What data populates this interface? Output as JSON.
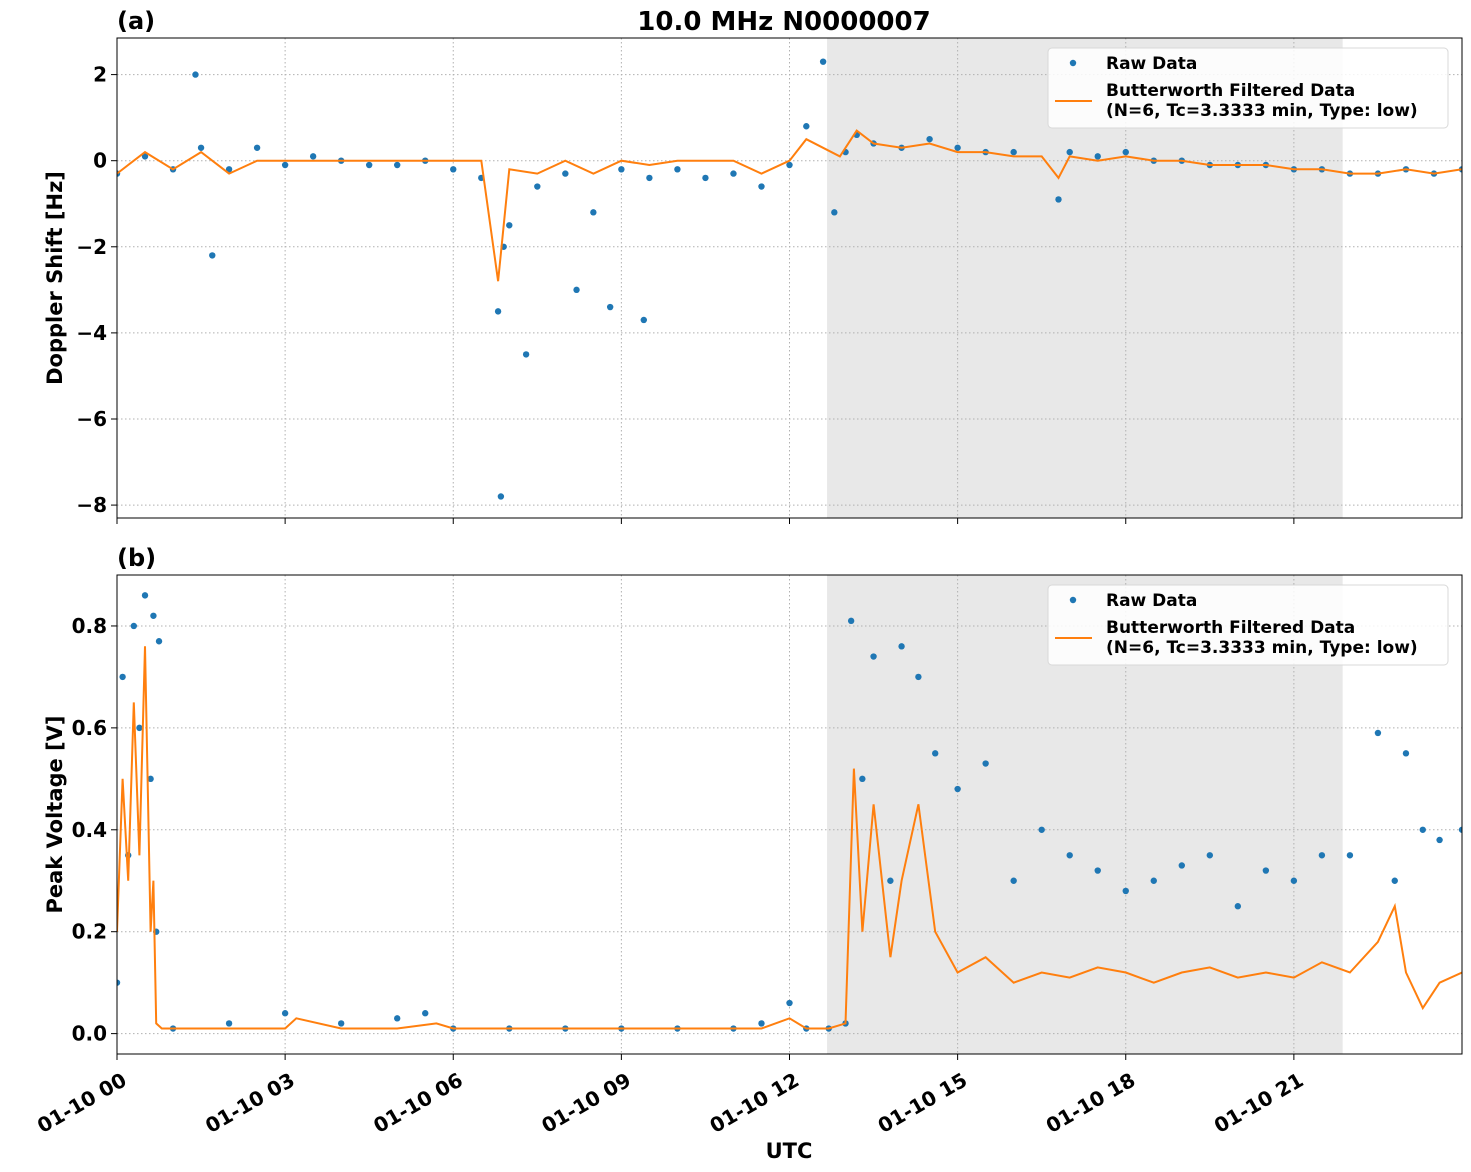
{
  "figure": {
    "title": "10.0 MHz N0000007",
    "xlabel": "UTC",
    "x_tick_labels": [
      "01-10 00",
      "01-10 03",
      "01-10 06",
      "01-10 09",
      "01-10 12",
      "01-10 15",
      "01-10 18",
      "01-10 21"
    ],
    "colors": {
      "raw": "#1f77b4",
      "filtered": "#ff7f0e",
      "night_shade": "#e8e8e8"
    }
  },
  "chart_data": [
    {
      "type": "scatter",
      "panel_label": "(a)",
      "ylabel": "Doppler Shift [Hz]",
      "xlim": [
        0,
        24
      ],
      "ylim": [
        -8.3,
        2.85
      ],
      "y_ticks": [
        2,
        0,
        -2,
        -4,
        -6,
        -8
      ],
      "y_tick_labels": [
        "2",
        "0",
        "−2",
        "−4",
        "−6",
        "−8"
      ],
      "grid": true,
      "legend_position": "top-right",
      "shaded_region": [
        12.67,
        21.87
      ],
      "series": [
        {
          "name": "Raw Data",
          "style": "points",
          "x": [
            0.0,
            0.5,
            1.0,
            1.4,
            1.5,
            1.7,
            2.0,
            2.5,
            3.0,
            3.5,
            4.0,
            4.5,
            5.0,
            5.5,
            6.0,
            6.5,
            6.8,
            6.85,
            6.9,
            7.0,
            7.3,
            7.5,
            8.0,
            8.2,
            8.5,
            8.8,
            9.0,
            9.4,
            9.5,
            10.0,
            10.5,
            11.0,
            11.5,
            12.0,
            12.3,
            12.6,
            12.8,
            13.0,
            13.2,
            13.5,
            14.0,
            14.5,
            15.0,
            15.5,
            16.0,
            16.8,
            17.0,
            17.5,
            18.0,
            18.5,
            19.0,
            19.5,
            20.0,
            20.5,
            21.0,
            21.5,
            22.0,
            22.5,
            23.0,
            23.5,
            24.0
          ],
          "y": [
            -0.3,
            0.1,
            -0.2,
            2.0,
            0.3,
            -2.2,
            -0.2,
            0.3,
            -0.1,
            0.1,
            0.0,
            -0.1,
            -0.1,
            0.0,
            -0.2,
            -0.4,
            -3.5,
            -7.8,
            -2.0,
            -1.5,
            -4.5,
            -0.6,
            -0.3,
            -3.0,
            -1.2,
            -3.4,
            -0.2,
            -3.7,
            -0.4,
            -0.2,
            -0.4,
            -0.3,
            -0.6,
            -0.1,
            0.8,
            2.3,
            -1.2,
            0.2,
            0.6,
            0.4,
            0.3,
            0.5,
            0.3,
            0.2,
            0.2,
            -0.9,
            0.2,
            0.1,
            0.2,
            0.0,
            0.0,
            -0.1,
            -0.1,
            -0.1,
            -0.2,
            -0.2,
            -0.3,
            -0.3,
            -0.2,
            -0.3,
            -0.2
          ]
        },
        {
          "name": "Butterworth Filtered Data\n(N=6, Tc=3.3333 min, Type: low)",
          "style": "line",
          "x": [
            0.0,
            0.5,
            1.0,
            1.5,
            2.0,
            2.5,
            3.0,
            3.5,
            4.0,
            4.5,
            5.0,
            5.5,
            6.0,
            6.5,
            6.8,
            7.0,
            7.5,
            8.0,
            8.5,
            9.0,
            9.5,
            10.0,
            10.5,
            11.0,
            11.5,
            12.0,
            12.3,
            12.6,
            12.9,
            13.2,
            13.5,
            14.0,
            14.5,
            15.0,
            15.5,
            16.0,
            16.5,
            16.8,
            17.0,
            17.5,
            18.0,
            18.5,
            19.0,
            19.5,
            20.0,
            20.5,
            21.0,
            21.5,
            22.0,
            22.5,
            23.0,
            23.5,
            24.0
          ],
          "y": [
            -0.3,
            0.2,
            -0.2,
            0.2,
            -0.3,
            0.0,
            0.0,
            0.0,
            0.0,
            0.0,
            0.0,
            0.0,
            0.0,
            0.0,
            -2.8,
            -0.2,
            -0.3,
            0.0,
            -0.3,
            0.0,
            -0.1,
            0.0,
            0.0,
            0.0,
            -0.3,
            0.0,
            0.5,
            0.3,
            0.1,
            0.7,
            0.4,
            0.3,
            0.4,
            0.2,
            0.2,
            0.1,
            0.1,
            -0.4,
            0.1,
            0.0,
            0.1,
            0.0,
            0.0,
            -0.1,
            -0.1,
            -0.1,
            -0.2,
            -0.2,
            -0.3,
            -0.3,
            -0.2,
            -0.3,
            -0.2
          ]
        }
      ]
    },
    {
      "type": "scatter",
      "panel_label": "(b)",
      "ylabel": "Peak Voltage [V]",
      "xlim": [
        0,
        24
      ],
      "ylim": [
        -0.04,
        0.9
      ],
      "y_ticks": [
        0.0,
        0.2,
        0.4,
        0.6,
        0.8
      ],
      "y_tick_labels": [
        "0.0",
        "0.2",
        "0.4",
        "0.6",
        "0.8"
      ],
      "grid": true,
      "legend_position": "top-right",
      "shaded_region": [
        12.67,
        21.87
      ],
      "series": [
        {
          "name": "Raw Data",
          "style": "points",
          "x": [
            0.0,
            0.1,
            0.2,
            0.3,
            0.4,
            0.5,
            0.6,
            0.65,
            0.7,
            0.75,
            1.0,
            2.0,
            3.0,
            4.0,
            5.0,
            5.5,
            6.0,
            7.0,
            8.0,
            9.0,
            10.0,
            11.0,
            11.5,
            12.0,
            12.3,
            12.7,
            13.0,
            13.1,
            13.3,
            13.5,
            13.8,
            14.0,
            14.3,
            14.6,
            15.0,
            15.5,
            16.0,
            16.5,
            17.0,
            17.5,
            18.0,
            18.5,
            19.0,
            19.5,
            20.0,
            20.5,
            21.0,
            21.5,
            22.0,
            22.5,
            22.8,
            23.0,
            23.3,
            23.6,
            24.0
          ],
          "y": [
            0.1,
            0.7,
            0.35,
            0.8,
            0.6,
            0.86,
            0.5,
            0.82,
            0.2,
            0.77,
            0.01,
            0.02,
            0.04,
            0.02,
            0.03,
            0.04,
            0.01,
            0.01,
            0.01,
            0.01,
            0.01,
            0.01,
            0.02,
            0.06,
            0.01,
            0.01,
            0.02,
            0.81,
            0.5,
            0.74,
            0.3,
            0.76,
            0.7,
            0.55,
            0.48,
            0.53,
            0.3,
            0.4,
            0.35,
            0.32,
            0.28,
            0.3,
            0.33,
            0.35,
            0.25,
            0.32,
            0.3,
            0.35,
            0.35,
            0.59,
            0.3,
            0.55,
            0.4,
            0.38,
            0.4
          ]
        },
        {
          "name": "Butterworth Filtered Data\n(N=6, Tc=3.3333 min, Type: low)",
          "style": "line",
          "x": [
            0.0,
            0.1,
            0.2,
            0.3,
            0.4,
            0.5,
            0.6,
            0.65,
            0.7,
            0.8,
            1.0,
            2.0,
            3.0,
            3.2,
            4.0,
            5.0,
            5.7,
            6.0,
            7.0,
            8.0,
            9.0,
            10.0,
            11.0,
            11.5,
            12.0,
            12.3,
            12.7,
            13.0,
            13.15,
            13.3,
            13.5,
            13.8,
            14.0,
            14.3,
            14.6,
            15.0,
            15.5,
            16.0,
            16.5,
            17.0,
            17.5,
            18.0,
            18.5,
            19.0,
            19.5,
            20.0,
            20.5,
            21.0,
            21.5,
            22.0,
            22.5,
            22.8,
            23.0,
            23.3,
            23.6,
            24.0
          ],
          "y": [
            0.2,
            0.5,
            0.3,
            0.65,
            0.35,
            0.76,
            0.2,
            0.3,
            0.02,
            0.01,
            0.01,
            0.01,
            0.01,
            0.03,
            0.01,
            0.01,
            0.02,
            0.01,
            0.01,
            0.01,
            0.01,
            0.01,
            0.01,
            0.01,
            0.03,
            0.01,
            0.01,
            0.02,
            0.52,
            0.2,
            0.45,
            0.15,
            0.3,
            0.45,
            0.2,
            0.12,
            0.15,
            0.1,
            0.12,
            0.11,
            0.13,
            0.12,
            0.1,
            0.12,
            0.13,
            0.11,
            0.12,
            0.11,
            0.14,
            0.12,
            0.18,
            0.25,
            0.12,
            0.05,
            0.1,
            0.12
          ]
        }
      ]
    }
  ]
}
